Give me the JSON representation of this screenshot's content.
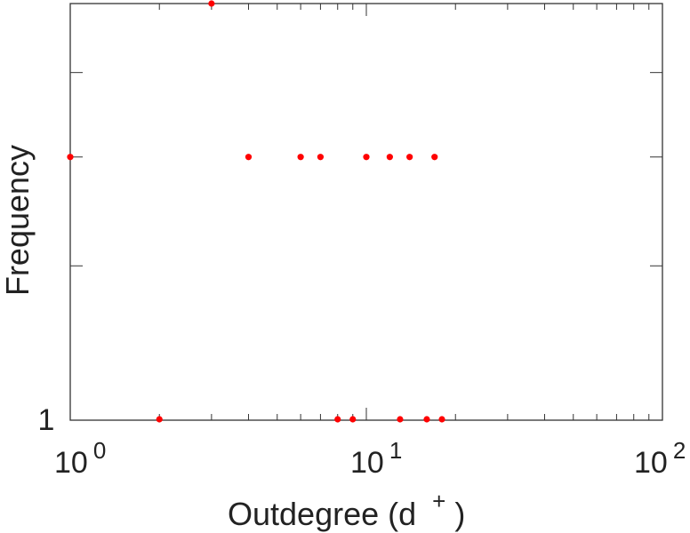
{
  "chart_data": {
    "type": "scatter",
    "title": "",
    "xlabel": "Outdegree (d",
    "xlabel_superscript": "+",
    "xlabel_close": ")",
    "ylabel": "Frequency",
    "x_scale": "log",
    "y_scale": "log",
    "xlim": [
      1,
      100
    ],
    "ylim": [
      1,
      3
    ],
    "x_ticks": [
      {
        "value": 1,
        "base": "10",
        "exp": "0"
      },
      {
        "value": 10,
        "base": "10",
        "exp": "1"
      },
      {
        "value": 100,
        "base": "10",
        "exp": "2"
      }
    ],
    "y_ticks": [
      {
        "value": 1,
        "label": "1"
      }
    ],
    "grid": false,
    "colors": {
      "points": "#ff0000",
      "axes": "#333333"
    },
    "series": [
      {
        "points": [
          {
            "x": 3,
            "y": 3
          },
          {
            "x": 1,
            "y": 2
          },
          {
            "x": 4,
            "y": 2
          },
          {
            "x": 6,
            "y": 2
          },
          {
            "x": 7,
            "y": 2
          },
          {
            "x": 10,
            "y": 2
          },
          {
            "x": 12,
            "y": 2
          },
          {
            "x": 14,
            "y": 2
          },
          {
            "x": 17,
            "y": 2
          },
          {
            "x": 2,
            "y": 1
          },
          {
            "x": 8,
            "y": 1
          },
          {
            "x": 9,
            "y": 1
          },
          {
            "x": 13,
            "y": 1
          },
          {
            "x": 16,
            "y": 1
          },
          {
            "x": 18,
            "y": 1
          }
        ]
      }
    ]
  }
}
